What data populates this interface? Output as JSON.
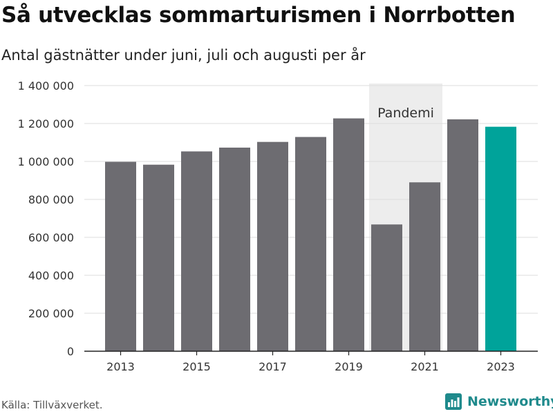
{
  "title": "Så utvecklas sommarturismen i Norrbotten",
  "subtitle": "Antal gästnätter under juni, juli och augusti per år",
  "source": "Källa: Tillväxverket.",
  "brand": {
    "name": "Newsworthy",
    "icon": "bar-chart-logo-icon",
    "color": "#1f8a8c"
  },
  "colors": {
    "bar": "#6d6c71",
    "highlight": "#00a39a",
    "shade": "#ededed",
    "grid": "#dddddd",
    "axis": "#222222"
  },
  "chart_data": {
    "type": "bar",
    "categories": [
      2013,
      2014,
      2015,
      2016,
      2017,
      2018,
      2019,
      2020,
      2021,
      2022,
      2023
    ],
    "values": [
      998000,
      983000,
      1053000,
      1073000,
      1103000,
      1129000,
      1227000,
      668000,
      890000,
      1222000,
      1183000
    ],
    "highlight_category": 2023,
    "xtick_labels": [
      "2013",
      "2015",
      "2017",
      "2019",
      "2021",
      "2023"
    ],
    "ylim": [
      0,
      1400000
    ],
    "yticks": [
      0,
      200000,
      400000,
      600000,
      800000,
      1000000,
      1200000,
      1400000
    ],
    "ytick_labels": [
      "0",
      "200 000",
      "400 000",
      "600 000",
      "800 000",
      "1 000 000",
      "1 200 000",
      "1 400 000"
    ],
    "grid": true,
    "shaded_region": {
      "start": 2020,
      "end": 2021,
      "label": "Pandemi"
    }
  }
}
